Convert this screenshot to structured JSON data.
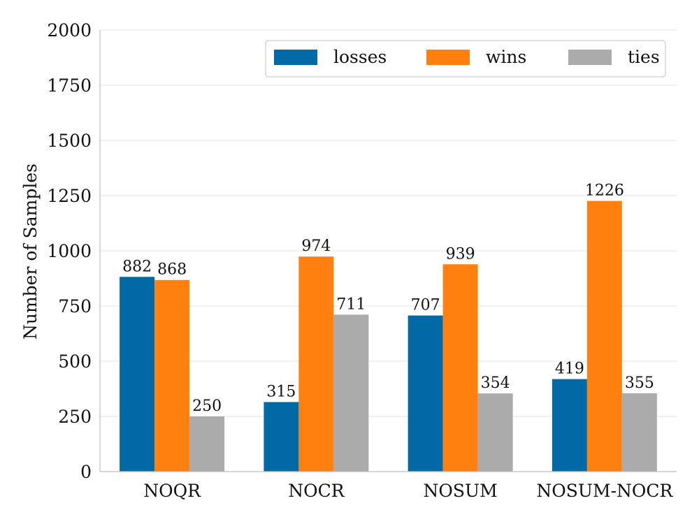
{
  "chart_data": {
    "type": "bar",
    "categories": [
      "NOQR",
      "NOCR",
      "NOSUM",
      "NOSUM-NOCR"
    ],
    "series": [
      {
        "name": "losses",
        "color": "#016aa6",
        "values": [
          882,
          315,
          707,
          419
        ]
      },
      {
        "name": "wins",
        "color": "#ff800e",
        "values": [
          868,
          974,
          939,
          1226
        ]
      },
      {
        "name": "ties",
        "color": "#ababab",
        "values": [
          250,
          711,
          354,
          355
        ]
      }
    ],
    "ylabel": "Number of Samples",
    "ylim": [
      0,
      2000
    ],
    "yticks": [
      0,
      250,
      500,
      750,
      1000,
      1250,
      1500,
      1750,
      2000
    ],
    "grid": "horizontal",
    "legend_position": "top-right"
  }
}
